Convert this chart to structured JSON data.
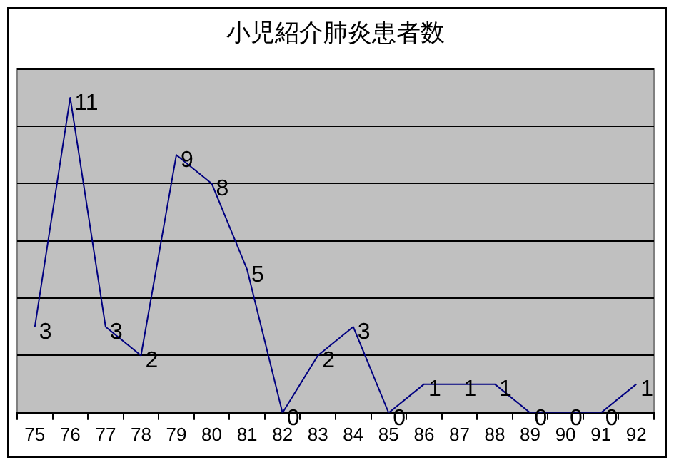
{
  "chart_data": {
    "type": "line",
    "title": "小児紹介肺炎患者数",
    "categories": [
      "75",
      "76",
      "77",
      "78",
      "79",
      "80",
      "81",
      "82",
      "83",
      "84",
      "85",
      "86",
      "87",
      "88",
      "89",
      "90",
      "91",
      "92"
    ],
    "series": [
      {
        "color": "#000080",
        "values": [
          3,
          11,
          3,
          2,
          9,
          8,
          5,
          0,
          2,
          3,
          0,
          1,
          1,
          1,
          0,
          0,
          0,
          1
        ]
      }
    ],
    "ylim": [
      0,
      12
    ],
    "yticks": [
      0,
      2,
      4,
      6,
      8,
      10,
      12
    ],
    "tick_labels": "x",
    "grid": "y",
    "data_labels": true,
    "legend": false,
    "marker": "none",
    "line_style": "solid"
  }
}
